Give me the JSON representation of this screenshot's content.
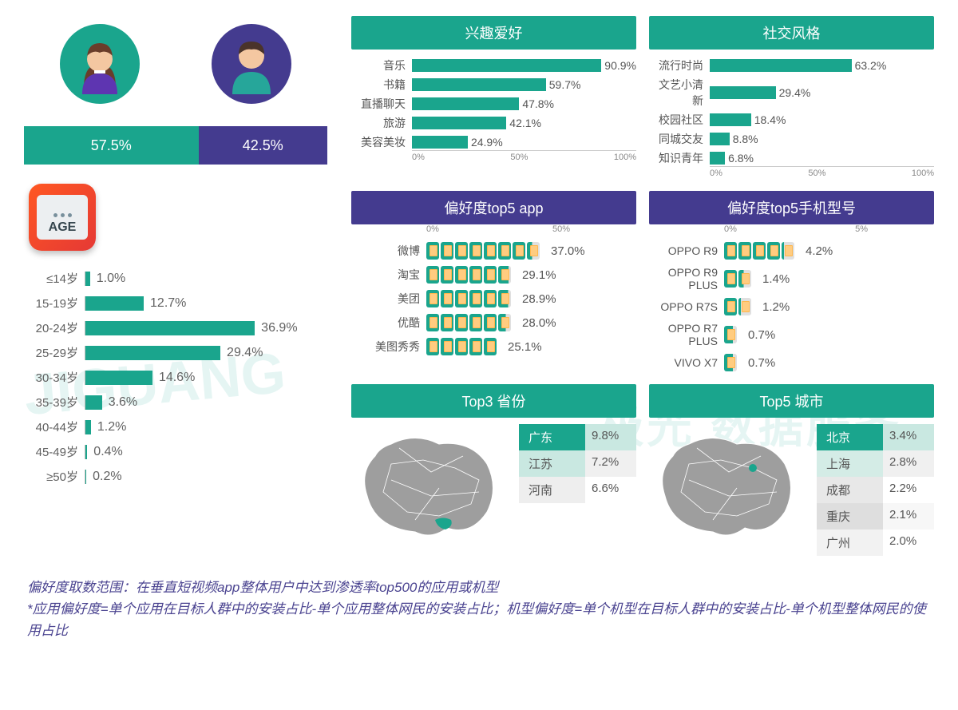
{
  "colors": {
    "teal": "#1aa58d",
    "teal_light": "#4fc3ab",
    "purple": "#443b8f",
    "gray_text": "#616161",
    "map_gray": "#9e9e9e"
  },
  "gender": {
    "female_pct": 57.5,
    "male_pct": 42.5,
    "female_label": "57.5%",
    "male_label": "42.5%",
    "female_color": "#1aa58d",
    "male_color": "#443b8f"
  },
  "age": {
    "badge_text": "AGE",
    "bar_color": "#1aa58d",
    "max_pct": 40,
    "rows": [
      {
        "label": "≤14岁",
        "pct": 1.0,
        "val": "1.0%"
      },
      {
        "label": "15-19岁",
        "pct": 12.7,
        "val": "12.7%"
      },
      {
        "label": "20-24岁",
        "pct": 36.9,
        "val": "36.9%"
      },
      {
        "label": "25-29岁",
        "pct": 29.4,
        "val": "29.4%"
      },
      {
        "label": "30-34岁",
        "pct": 14.6,
        "val": "14.6%"
      },
      {
        "label": "35-39岁",
        "pct": 3.6,
        "val": "3.6%"
      },
      {
        "label": "40-44岁",
        "pct": 1.2,
        "val": "1.2%"
      },
      {
        "label": "45-49岁",
        "pct": 0.4,
        "val": "0.4%"
      },
      {
        "label": "≥50岁",
        "pct": 0.2,
        "val": "0.2%"
      }
    ]
  },
  "interest": {
    "title": "兴趣爱好",
    "max": 100,
    "ticks": [
      "0%",
      "50%",
      "100%"
    ],
    "rows": [
      {
        "label": "音乐",
        "pct": 90.9,
        "val": "90.9%"
      },
      {
        "label": "书籍",
        "pct": 59.7,
        "val": "59.7%"
      },
      {
        "label": "直播聊天",
        "pct": 47.8,
        "val": "47.8%"
      },
      {
        "label": "旅游",
        "pct": 42.1,
        "val": "42.1%"
      },
      {
        "label": "美容美妆",
        "pct": 24.9,
        "val": "24.9%"
      }
    ]
  },
  "social": {
    "title": "社交风格",
    "max": 100,
    "ticks": [
      "0%",
      "50%",
      "100%"
    ],
    "rows": [
      {
        "label": "流行时尚",
        "pct": 63.2,
        "val": "63.2%"
      },
      {
        "label": "文艺小清新",
        "pct": 29.4,
        "val": "29.4%"
      },
      {
        "label": "校园社区",
        "pct": 18.4,
        "val": "18.4%"
      },
      {
        "label": "同城交友",
        "pct": 8.8,
        "val": "8.8%"
      },
      {
        "label": "知识青年",
        "pct": 6.8,
        "val": "6.8%"
      }
    ]
  },
  "apps": {
    "title": "偏好度top5 app",
    "axis": [
      "0%",
      "50%"
    ],
    "unit_pct": 5,
    "rows": [
      {
        "label": "微博",
        "pct": 37.0,
        "val": "37.0%"
      },
      {
        "label": "淘宝",
        "pct": 29.1,
        "val": "29.1%"
      },
      {
        "label": "美团",
        "pct": 28.9,
        "val": "28.9%"
      },
      {
        "label": "优酷",
        "pct": 28.0,
        "val": "28.0%"
      },
      {
        "label": "美图秀秀",
        "pct": 25.1,
        "val": "25.1%"
      }
    ]
  },
  "phones": {
    "title": "偏好度top5手机型号",
    "axis": [
      "0%",
      "5%"
    ],
    "unit_pct": 1,
    "rows": [
      {
        "label": "OPPO R9",
        "pct": 4.2,
        "val": "4.2%"
      },
      {
        "label": "OPPO R9 PLUS",
        "pct": 1.4,
        "val": "1.4%"
      },
      {
        "label": "OPPO R7S",
        "pct": 1.2,
        "val": "1.2%"
      },
      {
        "label": "OPPO R7 PLUS",
        "pct": 0.7,
        "val": "0.7%"
      },
      {
        "label": "VIVO X7",
        "pct": 0.7,
        "val": "0.7%"
      }
    ]
  },
  "provinces": {
    "title": "Top3 省份",
    "rows": [
      {
        "name": "广东",
        "val": "9.8%",
        "bg": "#1aa58d",
        "fg": "#ffffff",
        "vbg": "#c9e8e1"
      },
      {
        "name": "江苏",
        "val": "7.2%",
        "bg": "#c9e8e1",
        "fg": "#555555",
        "vbg": "#f0f0f0"
      },
      {
        "name": "河南",
        "val": "6.6%",
        "bg": "#eeeeee",
        "fg": "#555555",
        "vbg": "#ffffff"
      }
    ]
  },
  "cities": {
    "title": "Top5 城市",
    "rows": [
      {
        "name": "北京",
        "val": "3.4%",
        "bg": "#1aa58d",
        "fg": "#ffffff",
        "vbg": "#c9e8e1"
      },
      {
        "name": "上海",
        "val": "2.8%",
        "bg": "#d4ece6",
        "fg": "#555555",
        "vbg": "#f0f0f0"
      },
      {
        "name": "成都",
        "val": "2.2%",
        "bg": "#e8e8e8",
        "fg": "#555555",
        "vbg": "#ffffff"
      },
      {
        "name": "重庆",
        "val": "2.1%",
        "bg": "#dedede",
        "fg": "#555555",
        "vbg": "#f7f7f7"
      },
      {
        "name": "广州",
        "val": "2.0%",
        "bg": "#f2f2f2",
        "fg": "#555555",
        "vbg": "#ffffff"
      }
    ]
  },
  "footnote": {
    "line1": "偏好度取数范围：在垂直短视频app整体用户中达到渗透率top500的应用或机型",
    "line2": "*应用偏好度=单个应用在目标人群中的安装占比-单个应用整体网民的安装占比；机型偏好度=单个机型在目标人群中的安装占比-单个机型整体网民的使用占比"
  },
  "watermark": {
    "logo": "JIGUANG",
    "text": "极光 数据服务"
  }
}
